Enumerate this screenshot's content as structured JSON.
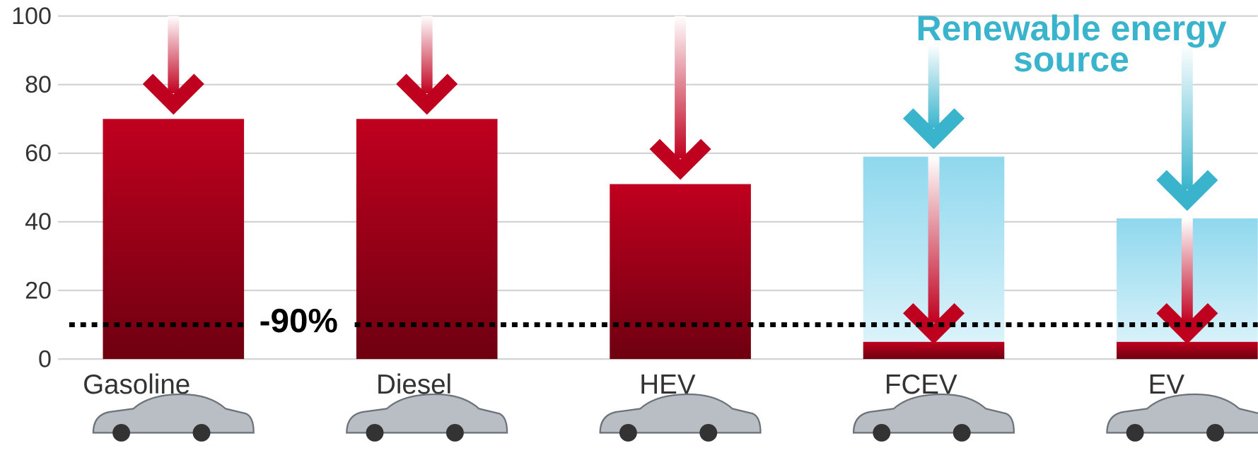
{
  "chart_data": {
    "type": "bar",
    "categories": [
      "Gasoline",
      "Diesel",
      "HEV",
      "FCEV",
      "EV"
    ],
    "series": [
      {
        "color": "#8fd8ee",
        "values": [
          null,
          null,
          null,
          59,
          41
        ]
      },
      {
        "color": "#c0001f",
        "values": [
          70,
          70,
          51,
          5,
          5
        ]
      }
    ],
    "ylim": [
      0,
      100
    ],
    "yticks": [
      0,
      20,
      40,
      60,
      80,
      100
    ],
    "grid": true,
    "reference_line": {
      "value": 10,
      "label": "-90%"
    },
    "annotation": "Renewable energy source",
    "annotation_color": "#3ab4cc"
  }
}
